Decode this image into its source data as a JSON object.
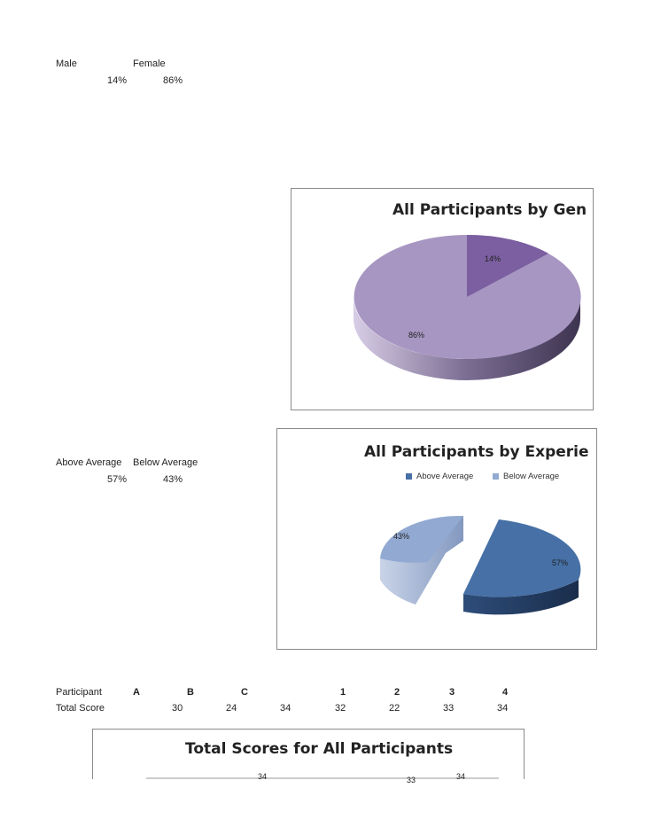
{
  "gender_table": {
    "headers": [
      "Male",
      "Female"
    ],
    "values": [
      "14%",
      "86%"
    ]
  },
  "experience_table": {
    "headers": [
      "Above Average",
      "Below Average"
    ],
    "values": [
      "57%",
      "43%"
    ]
  },
  "scores_table": {
    "row1_label": "Participant",
    "participants": [
      "A",
      "B",
      "C",
      "1",
      "2",
      "3",
      "4"
    ],
    "row2_label": "Total Score",
    "scores": [
      "30",
      "24",
      "34",
      "32",
      "22",
      "33",
      "34"
    ]
  },
  "chart_data": [
    {
      "type": "pie",
      "title": "All Participants by Gen",
      "categories": [
        "Male",
        "Female"
      ],
      "values": [
        14,
        86
      ],
      "labels": [
        "14%",
        "86%"
      ],
      "colors": [
        "#7b5fa0",
        "#a796c2"
      ]
    },
    {
      "type": "pie",
      "title": "All Participants by Experie",
      "categories": [
        "Above Average",
        "Below Average"
      ],
      "values": [
        57,
        43
      ],
      "labels": [
        "57%",
        "43%"
      ],
      "legend": [
        "Above Average",
        "Below Average"
      ],
      "legend_position": "top",
      "colors": [
        "#4670a6",
        "#92aad2"
      ]
    },
    {
      "type": "bar",
      "title": "Total Scores for All Participants",
      "visible_labels": [
        "34",
        "33",
        "34"
      ]
    }
  ]
}
